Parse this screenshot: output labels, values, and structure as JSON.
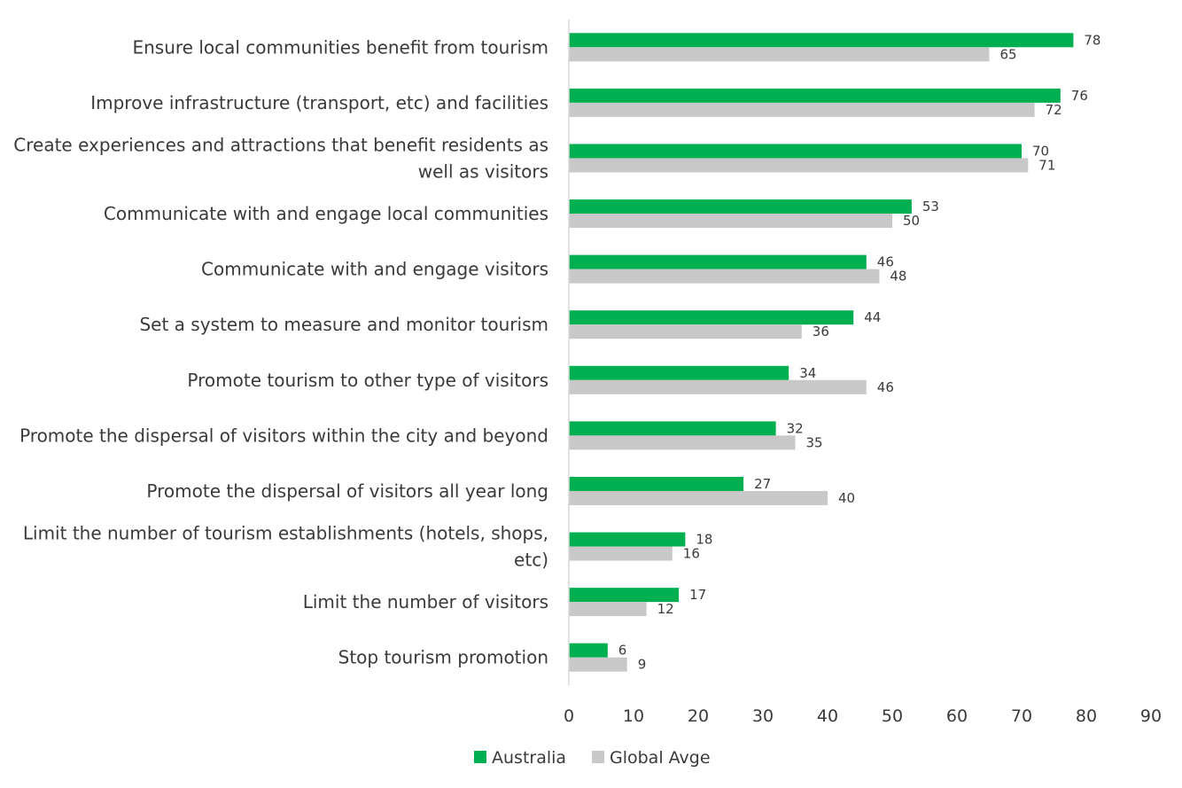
{
  "chart_data": {
    "type": "bar",
    "orientation": "horizontal",
    "categories": [
      "Ensure local communities benefit from tourism",
      "Improve infrastructure (transport, etc) and facilities",
      "Create experiences and attractions that benefit residents as well as visitors",
      "Communicate with and engage local communities",
      "Communicate with and engage visitors",
      "Set a system to measure and monitor tourism",
      "Promote tourism to other type of visitors",
      "Promote the dispersal of visitors within the city and beyond",
      "Promote the dispersal of visitors all year long",
      "Limit the number of tourism establishments (hotels, shops, etc)",
      "Limit the number of visitors",
      "Stop tourism promotion"
    ],
    "category_lines": [
      [
        "Ensure local communities benefit from tourism"
      ],
      [
        "Improve infrastructure (transport, etc) and facilities"
      ],
      [
        "Create experiences and attractions that benefit residents as",
        "well as visitors"
      ],
      [
        "Communicate with and engage local communities"
      ],
      [
        "Communicate with and engage visitors"
      ],
      [
        "Set a system to measure and monitor tourism"
      ],
      [
        "Promote tourism to other type of visitors"
      ],
      [
        "Promote the dispersal of visitors within the city and beyond"
      ],
      [
        "Promote the dispersal of visitors all year long"
      ],
      [
        "Limit the number of tourism establishments (hotels, shops,",
        "etc)"
      ],
      [
        "Limit the number of visitors"
      ],
      [
        "Stop tourism promotion"
      ]
    ],
    "series": [
      {
        "name": "Australia",
        "color": "#00b050",
        "values": [
          78,
          76,
          70,
          53,
          46,
          44,
          34,
          32,
          27,
          18,
          17,
          6
        ]
      },
      {
        "name": "Global Avge",
        "color": "#c8c8c8",
        "values": [
          65,
          72,
          71,
          50,
          48,
          36,
          46,
          35,
          40,
          16,
          12,
          9
        ]
      }
    ],
    "xlim": [
      0,
      90
    ],
    "xticks": [
      0,
      10,
      20,
      30,
      40,
      50,
      60,
      70,
      80,
      90
    ],
    "grid": false,
    "legend_position": "bottom",
    "title": "",
    "xlabel": "",
    "ylabel": ""
  }
}
